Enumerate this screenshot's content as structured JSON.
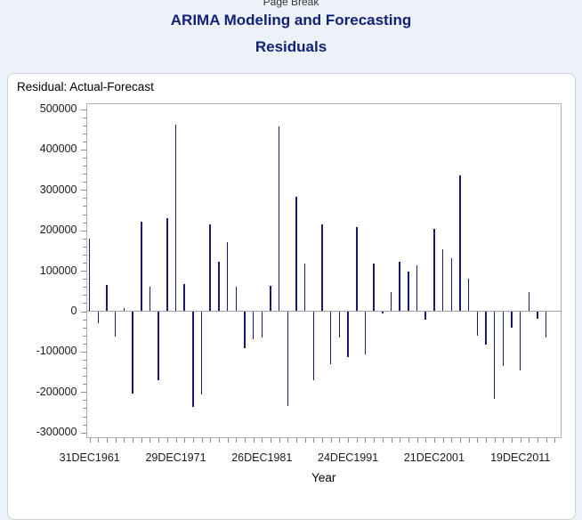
{
  "page": {
    "page_break_label": "Page Break"
  },
  "titles": {
    "title1": "ARIMA Modeling and Forecasting",
    "title2": "Residuals"
  },
  "panel": {
    "plot_label": "Residual: Actual-Forecast",
    "xaxis_title": "Year"
  },
  "colors": {
    "page_background": "#EDF2F9",
    "panel_background": "#FFFFFF",
    "panel_border": "#CBD1DA",
    "title_text": "#112277",
    "needle": "#191970",
    "frame": "#ABB1B8",
    "tick": "#878D94",
    "zero_line": "#9EA4AB"
  },
  "chart_data": {
    "type": "bar",
    "subtype": "needle",
    "title": "Residual: Actual-Forecast",
    "xlabel": "Year",
    "ylabel": "",
    "ylim": [
      -300000,
      500000
    ],
    "y_major_step": 100000,
    "y_minor_step": 20000,
    "grid": "off",
    "legend": "none",
    "y_tick_labels": [
      "500000",
      "400000",
      "300000",
      "200000",
      "100000",
      "0",
      "-100000",
      "-200000",
      "-300000"
    ],
    "x_tick_labels": [
      {
        "label": "31DEC1961",
        "index": 0
      },
      {
        "label": "29DEC1971",
        "index": 10
      },
      {
        "label": "26DEC1981",
        "index": 20
      },
      {
        "label": "24DEC1991",
        "index": 30
      },
      {
        "label": "21DEC2001",
        "index": 40
      },
      {
        "label": "19DEC2011",
        "index": 50
      }
    ],
    "x": [
      1961,
      1962,
      1963,
      1964,
      1965,
      1966,
      1967,
      1968,
      1969,
      1970,
      1971,
      1972,
      1973,
      1974,
      1975,
      1976,
      1977,
      1978,
      1979,
      1980,
      1981,
      1982,
      1983,
      1984,
      1985,
      1986,
      1987,
      1988,
      1989,
      1990,
      1991,
      1992,
      1993,
      1994,
      1995,
      1996,
      1997,
      1998,
      1999,
      2000,
      2001,
      2002,
      2003,
      2004,
      2005,
      2006,
      2007,
      2008,
      2009,
      2010,
      2011,
      2012,
      2013,
      2014
    ],
    "values": [
      180000,
      -30000,
      64000,
      -62000,
      8000,
      -204000,
      222000,
      61000,
      -171000,
      230000,
      461000,
      67000,
      -236000,
      -206000,
      214000,
      122000,
      170000,
      61000,
      -92000,
      -70000,
      -66000,
      62000,
      458000,
      -235000,
      283000,
      118000,
      -171000,
      215000,
      -132000,
      -66000,
      -114000,
      208000,
      -106000,
      117000,
      -6000,
      47000,
      122000,
      99000,
      113000,
      -21000,
      203000,
      153000,
      131000,
      337000,
      81000,
      -61000,
      -83000,
      -216000,
      -136000,
      -40000,
      -147000,
      48000,
      -18000,
      -66000
    ]
  }
}
